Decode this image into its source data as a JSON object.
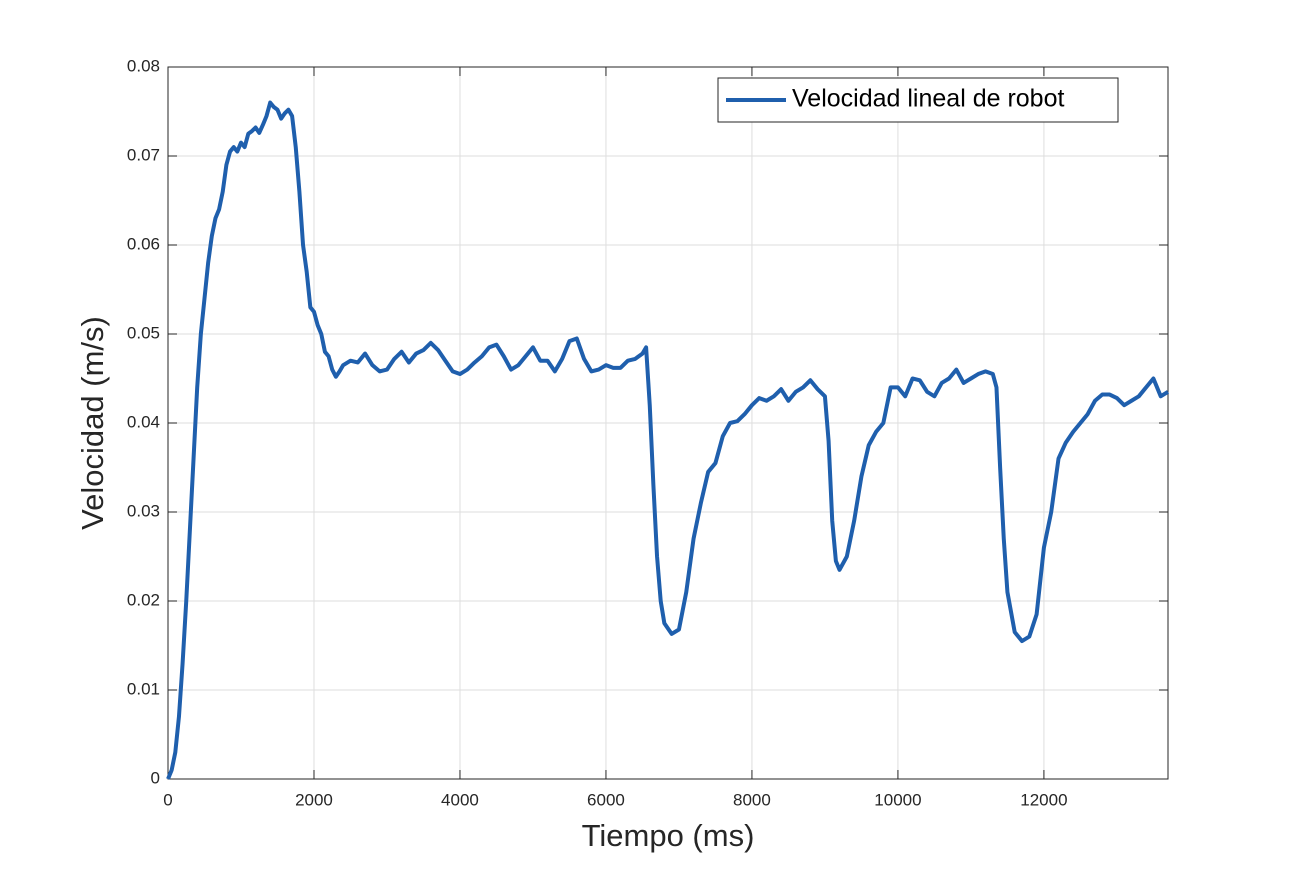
{
  "chart_data": {
    "type": "line",
    "xlabel": "Tiempo (ms)",
    "ylabel": "Velocidad (m/s)",
    "x": [
      0,
      50,
      100,
      150,
      200,
      250,
      300,
      350,
      400,
      450,
      500,
      550,
      600,
      650,
      700,
      750,
      800,
      850,
      900,
      950,
      1000,
      1050,
      1100,
      1150,
      1200,
      1250,
      1300,
      1350,
      1400,
      1450,
      1500,
      1550,
      1600,
      1650,
      1700,
      1750,
      1800,
      1850,
      1900,
      1950,
      2000,
      2050,
      2100,
      2150,
      2200,
      2250,
      2300,
      2350,
      2400,
      2500,
      2600,
      2700,
      2800,
      2900,
      3000,
      3100,
      3200,
      3300,
      3400,
      3500,
      3600,
      3700,
      3800,
      3900,
      4000,
      4100,
      4200,
      4300,
      4400,
      4500,
      4600,
      4700,
      4800,
      4900,
      5000,
      5100,
      5200,
      5300,
      5400,
      5500,
      5600,
      5700,
      5800,
      5900,
      6000,
      6100,
      6200,
      6300,
      6400,
      6500,
      6550,
      6600,
      6650,
      6700,
      6750,
      6800,
      6900,
      7000,
      7100,
      7200,
      7300,
      7400,
      7500,
      7600,
      7700,
      7800,
      7900,
      8000,
      8100,
      8200,
      8300,
      8400,
      8500,
      8600,
      8700,
      8800,
      8900,
      9000,
      9050,
      9100,
      9150,
      9200,
      9300,
      9400,
      9500,
      9600,
      9700,
      9800,
      9900,
      10000,
      10100,
      10200,
      10300,
      10400,
      10500,
      10600,
      10700,
      10800,
      10900,
      11000,
      11100,
      11200,
      11300,
      11350,
      11400,
      11450,
      11500,
      11600,
      11700,
      11800,
      11900,
      12000,
      12100,
      12200,
      12300,
      12400,
      12500,
      12600,
      12700,
      12800,
      12900,
      13000,
      13100,
      13200,
      13300,
      13400,
      13500,
      13600,
      13700
    ],
    "series": [
      {
        "name": "Velocidad lineal de robot",
        "color": "#1f5fad",
        "values": [
          0,
          0.001,
          0.003,
          0.007,
          0.013,
          0.02,
          0.028,
          0.036,
          0.044,
          0.05,
          0.054,
          0.058,
          0.061,
          0.063,
          0.064,
          0.066,
          0.069,
          0.0705,
          0.071,
          0.0705,
          0.0715,
          0.071,
          0.0725,
          0.0728,
          0.0732,
          0.0726,
          0.0735,
          0.0745,
          0.076,
          0.0755,
          0.0752,
          0.0742,
          0.0748,
          0.0752,
          0.0745,
          0.071,
          0.066,
          0.06,
          0.057,
          0.053,
          0.0525,
          0.051,
          0.05,
          0.048,
          0.0475,
          0.046,
          0.0452,
          0.0458,
          0.0465,
          0.047,
          0.0468,
          0.0478,
          0.0465,
          0.0458,
          0.046,
          0.0472,
          0.048,
          0.0468,
          0.0478,
          0.0482,
          0.049,
          0.0482,
          0.047,
          0.0458,
          0.0455,
          0.046,
          0.0468,
          0.0475,
          0.0485,
          0.0488,
          0.0475,
          0.046,
          0.0465,
          0.0475,
          0.0485,
          0.047,
          0.047,
          0.0458,
          0.0472,
          0.0492,
          0.0495,
          0.0472,
          0.0458,
          0.046,
          0.0465,
          0.0462,
          0.0462,
          0.047,
          0.0472,
          0.0478,
          0.0485,
          0.042,
          0.033,
          0.025,
          0.02,
          0.0175,
          0.0163,
          0.0168,
          0.021,
          0.027,
          0.031,
          0.0345,
          0.0355,
          0.0385,
          0.04,
          0.0402,
          0.041,
          0.042,
          0.0428,
          0.0425,
          0.043,
          0.0438,
          0.0425,
          0.0435,
          0.044,
          0.0448,
          0.0438,
          0.043,
          0.038,
          0.029,
          0.0245,
          0.0235,
          0.025,
          0.029,
          0.034,
          0.0375,
          0.039,
          0.04,
          0.044,
          0.044,
          0.043,
          0.045,
          0.0448,
          0.0435,
          0.043,
          0.0445,
          0.045,
          0.046,
          0.0445,
          0.045,
          0.0455,
          0.0458,
          0.0455,
          0.044,
          0.035,
          0.027,
          0.021,
          0.0165,
          0.0155,
          0.016,
          0.0185,
          0.026,
          0.03,
          0.036,
          0.0378,
          0.039,
          0.04,
          0.041,
          0.0425,
          0.0432,
          0.0432,
          0.0428,
          0.042,
          0.0425,
          0.043,
          0.044,
          0.045,
          0.043,
          0.0435
        ]
      }
    ],
    "xlim": [
      0,
      13700
    ],
    "xticks": [
      0,
      2000,
      4000,
      6000,
      8000,
      10000,
      12000
    ],
    "ylim": [
      0,
      0.08
    ],
    "yticks": [
      0,
      0.01,
      0.02,
      0.03,
      0.04,
      0.05,
      0.06,
      0.07,
      0.08
    ],
    "grid": true,
    "legend": "upper right"
  }
}
